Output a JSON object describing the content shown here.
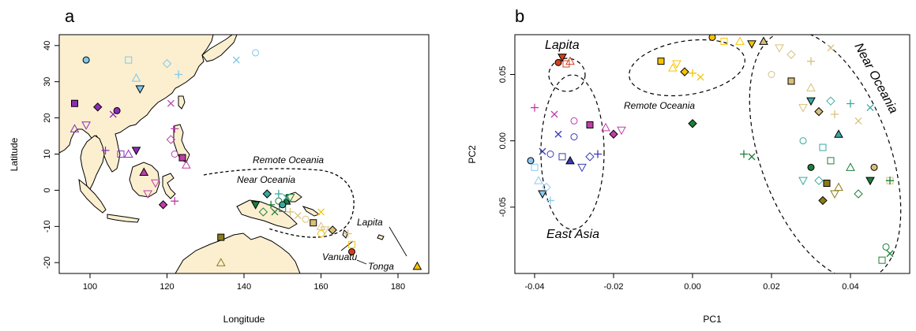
{
  "panel_a": {
    "letter": "a",
    "xlabel": "Longitude",
    "ylabel": "Latitude",
    "land_color": "#fbefd0",
    "labels": {
      "remote_oceania": "Remote Oceania",
      "near_oceania": "Near Oceania",
      "lapita": "Lapita",
      "vanuatu": "Vanuatu",
      "tonga": "Tonga"
    }
  },
  "panel_b": {
    "letter": "b",
    "labels": {
      "lapita": "Lapita",
      "remote_oceania": "Remote Oceania",
      "near_oceania": "Near Oceania",
      "east_asia": "East Asia"
    }
  },
  "chart_data": [
    {
      "type": "scatter",
      "title": "",
      "xlabel": "Longitude",
      "ylabel": "Latitude",
      "xlim": [
        92,
        188
      ],
      "ylim": [
        -23,
        43
      ],
      "xticks": [
        100,
        120,
        140,
        160,
        180
      ],
      "yticks": [
        -20,
        -10,
        0,
        10,
        20,
        30,
        40
      ],
      "grid": false,
      "series": [
        {
          "color": "#7ec8ec",
          "points": [
            [
              99,
              36
            ],
            [
              110,
              36
            ],
            [
              112,
              31
            ],
            [
              113,
              28
            ],
            [
              120,
              35
            ],
            [
              123,
              32
            ],
            [
              138,
              36
            ],
            [
              143,
              38
            ]
          ]
        },
        {
          "color": "#8c2db7",
          "points": [
            [
              96,
              24
            ],
            [
              96,
              17
            ],
            [
              99,
              18
            ],
            [
              102,
              23
            ],
            [
              104,
              11
            ],
            [
              106,
              21
            ],
            [
              107,
              22
            ],
            [
              108,
              10
            ],
            [
              110,
              10
            ],
            [
              112,
              11
            ]
          ]
        },
        {
          "color": "#bf3fa8",
          "points": [
            [
              114,
              5
            ],
            [
              117,
              2
            ],
            [
              121,
              14
            ],
            [
              122,
              17
            ],
            [
              121,
              24
            ],
            [
              122,
              10
            ],
            [
              124,
              9
            ],
            [
              125,
              7
            ],
            [
              115,
              -1
            ],
            [
              119,
              -4
            ],
            [
              122,
              -3
            ]
          ]
        },
        {
          "color": "#1e7f3a",
          "points": [
            [
              143,
              -4
            ],
            [
              145,
              -6
            ],
            [
              147,
              -4
            ],
            [
              148,
              -6
            ],
            [
              149,
              -3
            ],
            [
              150,
              -5
            ],
            [
              151,
              -3
            ],
            [
              152,
              -2
            ]
          ]
        },
        {
          "color": "#3aa8a0",
          "points": [
            [
              146,
              -1
            ],
            [
              149,
              -1
            ],
            [
              151,
              -2
            ],
            [
              150,
              -4
            ]
          ]
        },
        {
          "color": "#d9c07a",
          "points": [
            [
              152,
              -6
            ],
            [
              154,
              -7
            ],
            [
              156,
              -8
            ],
            [
              158,
              -9
            ],
            [
              160,
              -10
            ],
            [
              161,
              -11
            ],
            [
              163,
              -11
            ],
            [
              167,
              -12
            ]
          ]
        },
        {
          "color": "#f5c400",
          "points": [
            [
              160,
              -6
            ],
            [
              160,
              -12
            ],
            [
              168,
              -15
            ],
            [
              185,
              -21
            ]
          ]
        },
        {
          "color": "#d04020",
          "points": [
            [
              168,
              -17
            ]
          ]
        },
        {
          "color": "#8a7a1a",
          "points": [
            [
              134,
              -13
            ],
            [
              134,
              -20
            ]
          ]
        }
      ]
    },
    {
      "type": "scatter",
      "title": "",
      "xlabel": "PC1",
      "ylabel": "PC2",
      "xlim": [
        -0.045,
        0.055
      ],
      "ylim": [
        -0.1,
        0.08
      ],
      "xticks": [
        -0.04,
        -0.02,
        0.0,
        0.02,
        0.04
      ],
      "yticks": [
        -0.05,
        0.0,
        0.05
      ],
      "grid": false,
      "series": [
        {
          "color": "#d04020",
          "points": [
            [
              -0.034,
              0.059
            ],
            [
              -0.032,
              0.058
            ],
            [
              -0.031,
              0.06
            ],
            [
              -0.033,
              0.063
            ]
          ]
        },
        {
          "color": "#f5c400",
          "points": [
            [
              -0.008,
              0.06
            ],
            [
              -0.005,
              0.055
            ],
            [
              -0.004,
              0.058
            ],
            [
              -0.002,
              0.052
            ],
            [
              0.0,
              0.051
            ],
            [
              0.002,
              0.048
            ],
            [
              0.005,
              0.078
            ],
            [
              0.008,
              0.075
            ],
            [
              0.012,
              0.075
            ],
            [
              0.015,
              0.073
            ]
          ]
        },
        {
          "color": "#d9c07a",
          "points": [
            [
              0.018,
              0.075
            ],
            [
              0.022,
              0.07
            ],
            [
              0.025,
              0.065
            ],
            [
              0.03,
              0.06
            ],
            [
              0.035,
              0.07
            ],
            [
              0.02,
              0.05
            ],
            [
              0.025,
              0.045
            ],
            [
              0.03,
              0.04
            ],
            [
              0.028,
              0.025
            ],
            [
              0.032,
              0.022
            ],
            [
              0.036,
              0.02
            ],
            [
              0.042,
              0.015
            ],
            [
              0.046,
              -0.02
            ],
            [
              0.05,
              -0.03
            ]
          ]
        },
        {
          "color": "#3aa8a0",
          "points": [
            [
              0.03,
              0.03
            ],
            [
              0.035,
              0.03
            ],
            [
              0.04,
              0.028
            ],
            [
              0.045,
              0.025
            ],
            [
              0.028,
              0.0
            ],
            [
              0.033,
              -0.005
            ],
            [
              0.037,
              0.005
            ],
            [
              0.028,
              -0.03
            ],
            [
              0.032,
              -0.03
            ]
          ]
        },
        {
          "color": "#1e7f3a",
          "points": [
            [
              0.0,
              0.013
            ],
            [
              0.013,
              -0.01
            ],
            [
              0.015,
              -0.012
            ],
            [
              0.03,
              -0.02
            ],
            [
              0.035,
              -0.015
            ],
            [
              0.04,
              -0.02
            ],
            [
              0.045,
              -0.03
            ],
            [
              0.042,
              -0.04
            ],
            [
              0.05,
              -0.03
            ],
            [
              0.05,
              -0.085
            ],
            [
              0.049,
              -0.08
            ],
            [
              0.048,
              -0.09
            ]
          ]
        },
        {
          "color": "#bf3fa8",
          "points": [
            [
              -0.04,
              0.025
            ],
            [
              -0.035,
              0.02
            ],
            [
              -0.03,
              0.015
            ],
            [
              -0.026,
              0.012
            ],
            [
              -0.022,
              0.01
            ],
            [
              -0.018,
              0.008
            ],
            [
              -0.02,
              0.005
            ]
          ]
        },
        {
          "color": "#3a3ab8",
          "points": [
            [
              -0.038,
              -0.008
            ],
            [
              -0.036,
              -0.01
            ],
            [
              -0.033,
              -0.012
            ],
            [
              -0.031,
              -0.015
            ],
            [
              -0.028,
              -0.02
            ],
            [
              -0.026,
              -0.012
            ],
            [
              -0.024,
              -0.01
            ],
            [
              -0.034,
              0.005
            ],
            [
              -0.03,
              0.003
            ]
          ]
        },
        {
          "color": "#8ec9ef",
          "points": [
            [
              -0.041,
              -0.015
            ],
            [
              -0.04,
              -0.02
            ],
            [
              -0.039,
              -0.03
            ],
            [
              -0.038,
              -0.04
            ],
            [
              -0.037,
              -0.035
            ],
            [
              -0.036,
              -0.045
            ]
          ]
        },
        {
          "color": "#8a7a1a",
          "points": [
            [
              0.034,
              -0.032
            ],
            [
              0.037,
              -0.035
            ],
            [
              0.036,
              -0.04
            ],
            [
              0.033,
              -0.045
            ]
          ]
        }
      ]
    }
  ]
}
